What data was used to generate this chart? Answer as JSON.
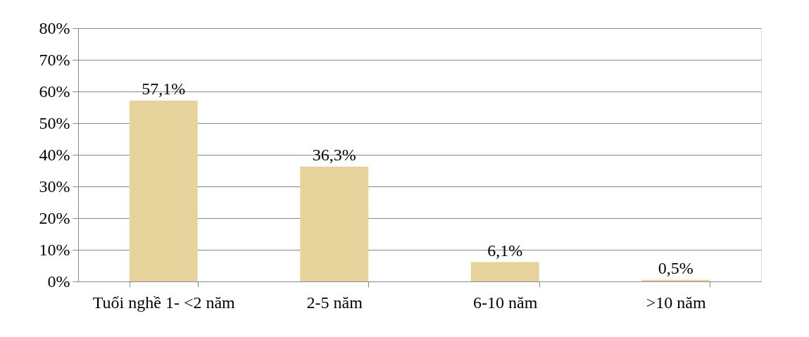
{
  "chart_data": {
    "type": "bar",
    "categories": [
      "Tuổi nghề 1- <2 năm",
      "2-5 năm",
      "6-10 năm",
      ">10 năm"
    ],
    "values": [
      57.1,
      36.3,
      6.1,
      0.5
    ],
    "value_labels": [
      "57,1%",
      "36,3%",
      "6,1%",
      "0,5%"
    ],
    "color": "#e6d39c",
    "ylim": [
      0,
      80
    ],
    "yticks": [
      {
        "value": 0,
        "label": "0%"
      },
      {
        "value": 10,
        "label": "10%"
      },
      {
        "value": 20,
        "label": "20%"
      },
      {
        "value": 30,
        "label": "30%"
      },
      {
        "value": 40,
        "label": "40%"
      },
      {
        "value": 50,
        "label": "50%"
      },
      {
        "value": 60,
        "label": "60%"
      },
      {
        "value": 70,
        "label": "70%"
      },
      {
        "value": 80,
        "label": "80%"
      }
    ],
    "grid": "y"
  }
}
